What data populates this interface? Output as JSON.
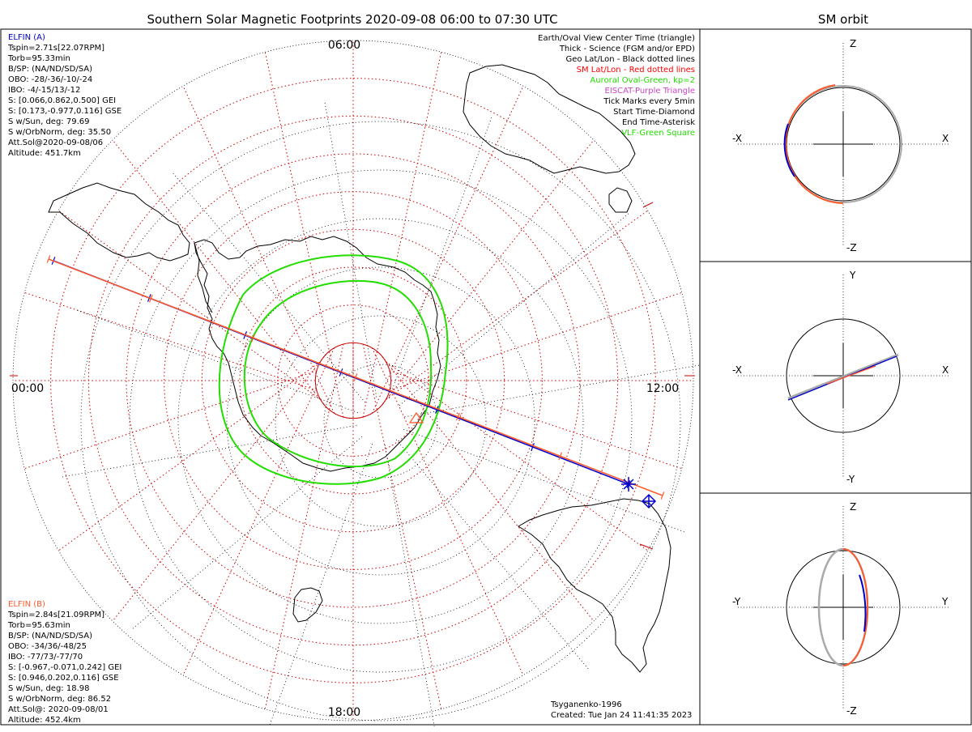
{
  "title": "Southern Solar Magnetic Footprints 2020-09-08 06:00 to 07:30 UTC",
  "orbit_title": "SM orbit",
  "colors": {
    "a": "#0000cc",
    "b": "#ff5a2a",
    "oval": "#22dd00",
    "geo": "#000000",
    "sm": "#ff0000",
    "eiscat": "#cc44cc",
    "grid": "#cc0000"
  },
  "clock_labels": {
    "top": "06:00",
    "left": "00:00",
    "right": "12:00",
    "bottom": "18:00"
  },
  "elfin_a": {
    "name": "ELFIN (A)",
    "lines": [
      "Tspin=2.71s[22.07RPM]",
      "Torb=95.33min",
      "B/SP: (NA/ND/SD/SA)",
      "OBO: -28/-36/-10/-24",
      "IBO: -4/-15/13/-12",
      "S: [0.066,0.862,0.500] GEI",
      "S: [0.173,-0.977,0.116] GSE",
      "S w/Sun, deg: 79.69",
      "S w/OrbNorm, deg: 35.50",
      "Att.Sol@2020-09-08/06",
      "Altitude: 451.7km"
    ]
  },
  "elfin_b": {
    "name": "ELFIN (B)",
    "lines": [
      "Tspin=2.84s[21.09RPM]",
      "Torb=95.63min",
      "B/SP: (NA/ND/SD/SA)",
      "OBO: -34/36/-48/25",
      "IBO: -77/73/-77/70",
      "S: [-0.967,-0.071,0.242] GEI",
      "S: [0.946,0.202,0.116] GSE",
      "S w/Sun, deg: 18.98",
      "S w/OrbNorm, deg: 86.52",
      "Att.Sol@: 2020-09-08/01",
      "Altitude: 452.4km"
    ]
  },
  "legend": [
    {
      "text": "Earth/Oval View Center Time (triangle)",
      "color": "#000000"
    },
    {
      "text": "Thick - Science (FGM and/or EPD)",
      "color": "#000000"
    },
    {
      "text": "Geo Lat/Lon - Black dotted lines",
      "color": "#000000"
    },
    {
      "text": "SM Lat/Lon - Red dotted lines",
      "color": "#ff0000"
    },
    {
      "text": "Auroral Oval-Green, kp=2",
      "color": "#22dd00"
    },
    {
      "text": "EISCAT-Purple Triangle",
      "color": "#cc44cc"
    },
    {
      "text": "Tick Marks every 5min",
      "color": "#000000"
    },
    {
      "text": "Start Time-Diamond",
      "color": "#000000"
    },
    {
      "text": "End Time-Asterisk",
      "color": "#000000"
    },
    {
      "text": "VLF-Green Square",
      "color": "#22dd00"
    }
  ],
  "footer": {
    "model": "Tsyganenko-1996",
    "created": "Created: Tue Jan 24 11:41:35 2023"
  },
  "orbit_panels": [
    {
      "top": "Z",
      "bottom": "-Z",
      "left": "-X",
      "right": "X"
    },
    {
      "top": "Y",
      "bottom": "-Y",
      "left": "-X",
      "right": "X"
    },
    {
      "top": "Z",
      "bottom": "-Z",
      "left": "-Y",
      "right": "Y"
    }
  ],
  "chart_data": {
    "type": "polar-map",
    "projection": "south polar, SM coordinates, magnetic local time",
    "sm_lat_circles_deg": [
      -80,
      -70,
      -60,
      -50,
      -40,
      -30,
      -20,
      -10
    ],
    "mlt_meridians_hours": [
      0,
      1,
      2,
      3,
      4,
      5,
      6,
      7,
      8,
      9,
      10,
      11,
      12,
      13,
      14,
      15,
      16,
      17,
      18,
      19,
      20,
      21,
      22,
      23
    ],
    "tracks": [
      {
        "name": "ELFIN (A)",
        "color": "#0000cc",
        "start": "06:00",
        "end": "07:30",
        "tick_minutes": 5
      },
      {
        "name": "ELFIN (B)",
        "color": "#ff5a2a",
        "start": "06:00",
        "end": "07:30",
        "tick_minutes": 5
      }
    ],
    "auroral_oval_kp": 2
  }
}
